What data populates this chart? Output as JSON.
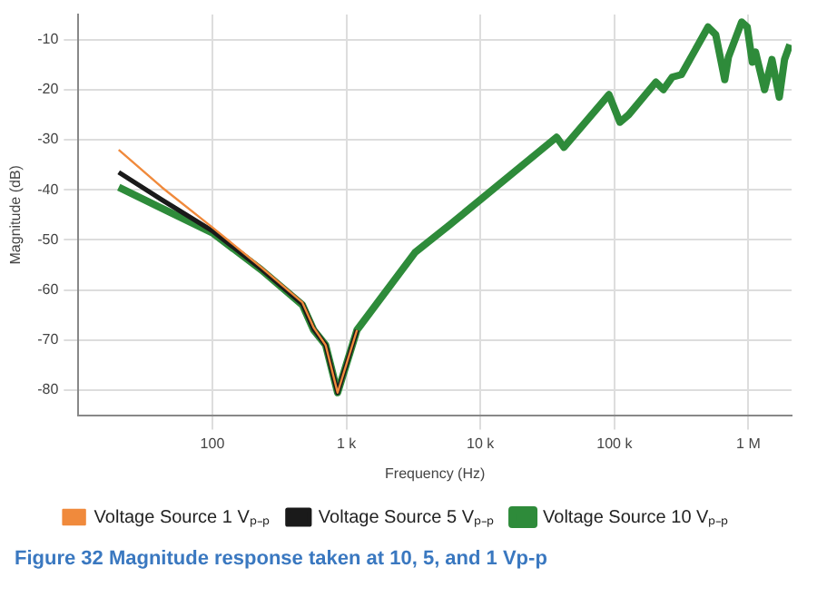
{
  "chart_data": {
    "type": "line",
    "xlabel": "Frequency (Hz)",
    "ylabel": "Magnitude (dB)",
    "log": "x",
    "grid": true,
    "legend": "bottom",
    "marker": "none",
    "line_style": "solid",
    "xlim": [
      10,
      2100000
    ],
    "xticks": [
      100,
      {
        "value": 1000,
        "label": "1 k"
      },
      {
        "value": 10000,
        "label": "10 k"
      },
      {
        "value": 100000,
        "label": "100 k"
      },
      {
        "value": 1000000,
        "label": "1 M"
      }
    ],
    "ylim": [
      -85,
      -5
    ],
    "yticks": [
      -10,
      -20,
      -30,
      -40,
      -50,
      -60,
      -70,
      -80
    ],
    "annotations": [
      "Figure 32 Magnitude response taken at 10, 5, and 1 Vp-p"
    ],
    "series": [
      {
        "name": "Voltage Source 1 Vₚ₋ₚ",
        "color": "#f08a3c",
        "x": [
          20,
          42,
          100,
          232,
          470,
          570,
          700,
          860,
          1200
        ],
        "values": [
          -32,
          -39.5,
          -47.5,
          -55.5,
          -62.5,
          -67.5,
          -71,
          -80.5,
          -68
        ]
      },
      {
        "name": "Voltage Source 5 Vₚ₋ₚ",
        "color": "#1a1a1a",
        "x": [
          20,
          42,
          100,
          232,
          470,
          570,
          700,
          860,
          1200
        ],
        "values": [
          -36.5,
          -42,
          -48.2,
          -55.8,
          -62.8,
          -67.8,
          -71,
          -80.5,
          -68
        ]
      },
      {
        "name": "Voltage Source 10 Vₚ₋ₚ",
        "color": "#2e8b3a",
        "x": [
          20,
          42,
          100,
          232,
          470,
          570,
          700,
          860,
          1200,
          3260,
          5900,
          37000,
          42000,
          91000,
          110000,
          128000,
          204000,
          232000,
          270000,
          316000,
          500000,
          570000,
          666000,
          710000,
          890000,
          980000,
          1070000,
          1130000,
          1320000,
          1500000,
          1700000,
          1860000,
          2040000
        ],
        "values": [
          -39.5,
          -43.7,
          -48.6,
          -56,
          -63,
          -68,
          -71,
          -80.5,
          -68,
          -52.5,
          -47,
          -29.5,
          -31.5,
          -21,
          -26.5,
          -25,
          -18.5,
          -20,
          -17.5,
          -17,
          -7.5,
          -9,
          -18,
          -13.5,
          -6.5,
          -7.5,
          -14.5,
          -12.5,
          -20,
          -14,
          -21.5,
          -14,
          -11
        ]
      }
    ]
  }
}
